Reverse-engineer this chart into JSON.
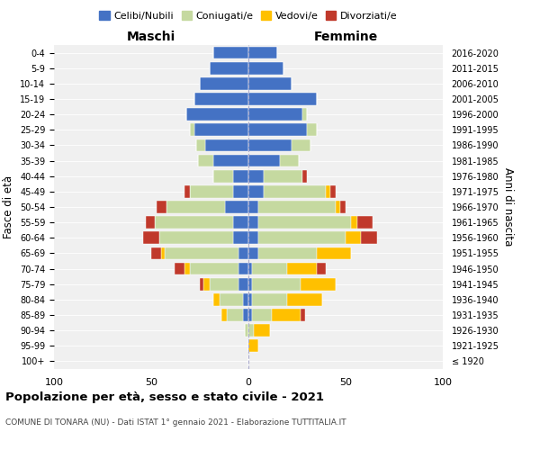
{
  "age_groups": [
    "100+",
    "95-99",
    "90-94",
    "85-89",
    "80-84",
    "75-79",
    "70-74",
    "65-69",
    "60-64",
    "55-59",
    "50-54",
    "45-49",
    "40-44",
    "35-39",
    "30-34",
    "25-29",
    "20-24",
    "15-19",
    "10-14",
    "5-9",
    "0-4"
  ],
  "birth_years": [
    "≤ 1920",
    "1921-1925",
    "1926-1930",
    "1931-1935",
    "1936-1940",
    "1941-1945",
    "1946-1950",
    "1951-1955",
    "1956-1960",
    "1961-1965",
    "1966-1970",
    "1971-1975",
    "1976-1980",
    "1981-1985",
    "1986-1990",
    "1991-1995",
    "1996-2000",
    "2001-2005",
    "2006-2010",
    "2011-2015",
    "2016-2020"
  ],
  "colors": {
    "celibi": "#4472c4",
    "coniugati": "#c5d9a0",
    "vedovi": "#ffc000",
    "divorziati": "#c0392b"
  },
  "xlim": 100,
  "title": "Popolazione per età, sesso e stato civile - 2021",
  "subtitle": "COMUNE DI TONARA (NU) - Dati ISTAT 1° gennaio 2021 - Elaborazione TUTTITALIA.IT",
  "ylabel_left": "Fasce di età",
  "ylabel_right": "Anni di nascita",
  "xlabel_left": "Maschi",
  "xlabel_right": "Femmine",
  "bg_color": "#f0f0f0",
  "legend_labels": [
    "Celibi/Nubili",
    "Coniugati/e",
    "Vedovi/e",
    "Divorziati/e"
  ],
  "male_data": [
    [
      0,
      0,
      0,
      0
    ],
    [
      0,
      0,
      0,
      0
    ],
    [
      0,
      2,
      0,
      0
    ],
    [
      3,
      8,
      3,
      0
    ],
    [
      3,
      12,
      3,
      0
    ],
    [
      5,
      15,
      3,
      2
    ],
    [
      5,
      25,
      3,
      5
    ],
    [
      5,
      38,
      2,
      5
    ],
    [
      8,
      38,
      0,
      8
    ],
    [
      8,
      40,
      0,
      5
    ],
    [
      12,
      30,
      0,
      5
    ],
    [
      8,
      22,
      0,
      3
    ],
    [
      8,
      10,
      0,
      0
    ],
    [
      18,
      8,
      0,
      0
    ],
    [
      22,
      5,
      0,
      0
    ],
    [
      28,
      2,
      0,
      0
    ],
    [
      32,
      0,
      0,
      0
    ],
    [
      28,
      0,
      0,
      0
    ],
    [
      25,
      0,
      0,
      0
    ],
    [
      20,
      0,
      0,
      0
    ],
    [
      18,
      0,
      0,
      0
    ]
  ],
  "female_data": [
    [
      0,
      0,
      0,
      0
    ],
    [
      0,
      0,
      5,
      0
    ],
    [
      0,
      3,
      8,
      0
    ],
    [
      2,
      10,
      15,
      2
    ],
    [
      2,
      18,
      18,
      0
    ],
    [
      2,
      25,
      18,
      0
    ],
    [
      2,
      18,
      15,
      5
    ],
    [
      5,
      30,
      18,
      0
    ],
    [
      5,
      45,
      8,
      8
    ],
    [
      5,
      48,
      3,
      8
    ],
    [
      5,
      40,
      2,
      3
    ],
    [
      8,
      32,
      2,
      3
    ],
    [
      8,
      20,
      0,
      2
    ],
    [
      16,
      10,
      0,
      0
    ],
    [
      22,
      10,
      0,
      0
    ],
    [
      30,
      5,
      0,
      0
    ],
    [
      28,
      2,
      0,
      0
    ],
    [
      35,
      0,
      0,
      0
    ],
    [
      22,
      0,
      0,
      0
    ],
    [
      18,
      0,
      0,
      0
    ],
    [
      15,
      0,
      0,
      0
    ]
  ]
}
